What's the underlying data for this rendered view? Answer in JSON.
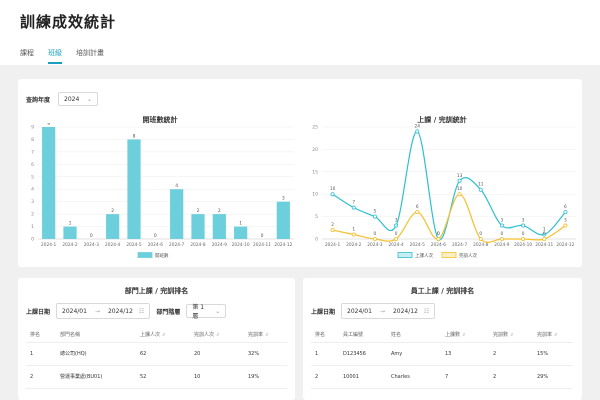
{
  "page": {
    "title": "訓練成效統計"
  },
  "tabs": [
    {
      "label": "課程",
      "active": false
    },
    {
      "label": "班級",
      "active": true
    },
    {
      "label": "培訓計畫",
      "active": false
    }
  ],
  "filter": {
    "label": "查詢年度",
    "year": "2024"
  },
  "colors": {
    "accent": "#1a9fc2",
    "bar": "#6dcfdc",
    "line1": "#2fbfd0",
    "line2": "#f5c02e"
  },
  "chart_data": [
    {
      "type": "bar",
      "title": "開班數統計",
      "categories": [
        "2024-1",
        "2024-2",
        "2024-3",
        "2024-4",
        "2024-5",
        "2024-6",
        "2024-7",
        "2024-8",
        "2024-9",
        "2024-10",
        "2024-11",
        "2024-12"
      ],
      "series": [
        {
          "name": "開班數",
          "values": [
            9,
            1,
            0,
            2,
            8,
            0,
            4,
            2,
            2,
            1,
            0,
            3
          ]
        }
      ],
      "yticks": [
        "0",
        "1",
        "2",
        "3",
        "4",
        "5",
        "6",
        "7",
        "8",
        "9"
      ],
      "ylim": [
        0,
        9
      ],
      "legend": "bottom"
    },
    {
      "type": "line",
      "title": "上課 / 完訓統計",
      "categories": [
        "2024-1",
        "2024-2",
        "2024-3",
        "2024-4",
        "2024-5",
        "2024-6",
        "2024-7",
        "2024-8",
        "2024-9",
        "2024-10",
        "2024-11",
        "2024-12"
      ],
      "series": [
        {
          "name": "上課人次",
          "values": [
            10,
            7,
            5,
            3,
            24,
            0,
            13,
            11,
            3,
            3,
            1,
            6
          ]
        },
        {
          "name": "完訓人次",
          "values": [
            2,
            1,
            0,
            0,
            6,
            0,
            10,
            0,
            0,
            0,
            0,
            3
          ]
        }
      ],
      "yticks": [
        "0",
        "5",
        "10",
        "15",
        "20",
        "25"
      ],
      "ylim": [
        0,
        25
      ],
      "legend": "bottom"
    }
  ],
  "dept": {
    "title": "部門上課 / 完訓排名",
    "date_label": "上課日期",
    "start": "2024/01",
    "arrow": "→",
    "end": "2024/12",
    "cal_icon": "calendar-icon",
    "level_label": "部門階層",
    "level_value": "第 1 層",
    "columns": [
      "排名",
      "部門名稱",
      "上課人次",
      "完訓人次",
      "完訓率"
    ],
    "rows": [
      [
        "1",
        "總公司(HQ)",
        "62",
        "20",
        "32%"
      ],
      [
        "2",
        "營運事業處(BU01)",
        "52",
        "10",
        "19%"
      ]
    ]
  },
  "emp": {
    "title": "員工上課 / 完訓排名",
    "date_label": "上課日期",
    "start": "2024/01",
    "arrow": "→",
    "end": "2024/12",
    "columns": [
      "排名",
      "員工編號",
      "姓名",
      "上課數",
      "完訓數",
      "完訓率"
    ],
    "rows": [
      [
        "1",
        "D123456",
        "Amy",
        "13",
        "2",
        "15%"
      ],
      [
        "2",
        "10001",
        "Charles",
        "7",
        "2",
        "29%"
      ]
    ]
  }
}
